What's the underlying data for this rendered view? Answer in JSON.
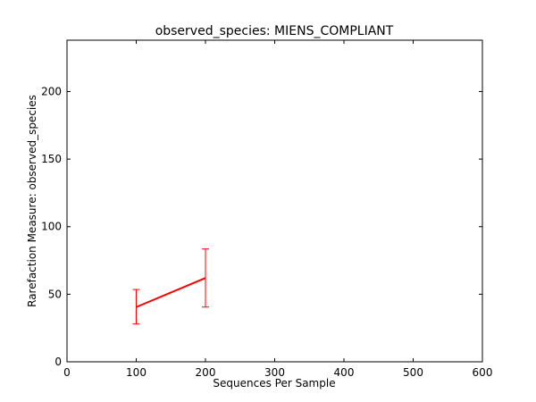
{
  "chart_data": {
    "type": "line",
    "title": "observed_species: MIENS_COMPLIANT",
    "xlabel": "Sequences Per Sample",
    "ylabel": "Rarefaction Measure: observed_species",
    "xlim": [
      0,
      600
    ],
    "ylim": [
      0,
      238
    ],
    "x_ticks": [
      0,
      100,
      200,
      300,
      400,
      500,
      600
    ],
    "y_ticks": [
      0,
      50,
      100,
      150,
      200
    ],
    "x_tick_labels": [
      "0",
      "100",
      "200",
      "300",
      "400",
      "500",
      "600"
    ],
    "y_tick_labels": [
      "0",
      "50",
      "100",
      "150",
      "200"
    ],
    "grid": false,
    "legend": "none",
    "series": [
      {
        "color": "#ff0000",
        "points": [
          {
            "x": 100,
            "y": 40.5,
            "err_low": 28,
            "err_high": 53.5
          },
          {
            "x": 200,
            "y": 62,
            "err_low": 40.5,
            "err_high": 83.5
          }
        ]
      }
    ]
  }
}
